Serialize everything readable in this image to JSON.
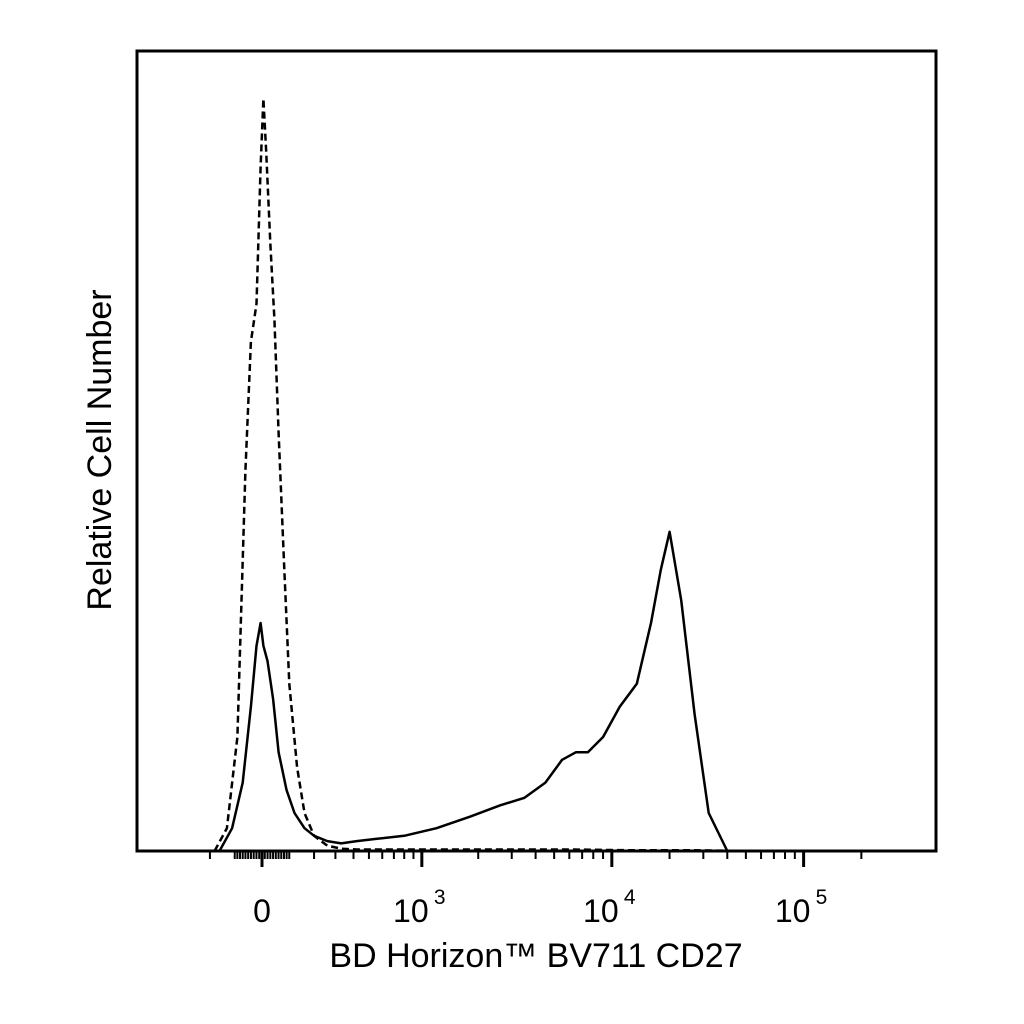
{
  "chart_data": {
    "type": "line",
    "title": "",
    "xlabel": "BD Horizon™ BV711 CD27",
    "ylabel": "Relative Cell Number",
    "x_scale": "biexponential",
    "xlim": [
      -300,
      230000
    ],
    "ylim": [
      0,
      100
    ],
    "grid": false,
    "legend": "none",
    "x_ticks": [
      {
        "value": 0,
        "base": "0",
        "exponent": ""
      },
      {
        "value": 1000,
        "base": "10",
        "exponent": "3"
      },
      {
        "value": 10000,
        "base": "10",
        "exponent": "4"
      },
      {
        "value": 100000,
        "base": "10",
        "exponent": "5"
      }
    ],
    "series": [
      {
        "style": "dashed",
        "x": [
          -180,
          -130,
          -90,
          -60,
          -40,
          -20,
          -5,
          5,
          15,
          30,
          45,
          60,
          80,
          100,
          130,
          160,
          200,
          260,
          330,
          420,
          550,
          800,
          1500,
          3000,
          6000,
          12000,
          25000,
          50000
        ],
        "y": [
          0,
          3,
          15,
          50,
          67,
          72,
          90,
          99,
          92,
          80,
          70,
          55,
          38,
          22,
          11,
          5,
          2,
          0.7,
          0.3,
          0.2,
          0.2,
          0.2,
          0.2,
          0.2,
          0.2,
          0.1,
          0.1,
          0
        ]
      },
      {
        "style": "solid",
        "x": [
          -160,
          -110,
          -70,
          -40,
          -20,
          -5,
          5,
          20,
          40,
          60,
          90,
          120,
          160,
          200,
          260,
          330,
          420,
          560,
          800,
          1200,
          1800,
          2600,
          3500,
          4500,
          5500,
          6500,
          7500,
          9000,
          11000,
          13500,
          16000,
          18000,
          20000,
          23000,
          27000,
          32000,
          40000
        ],
        "y": [
          0,
          3,
          9,
          19,
          27,
          30,
          27,
          25,
          20,
          13,
          8,
          5,
          3,
          2,
          1.3,
          1,
          1.3,
          1.6,
          2,
          3,
          4.5,
          6,
          7,
          9,
          12,
          13,
          13,
          15,
          19,
          22,
          30,
          37,
          42,
          33,
          18,
          5,
          0
        ]
      }
    ]
  }
}
